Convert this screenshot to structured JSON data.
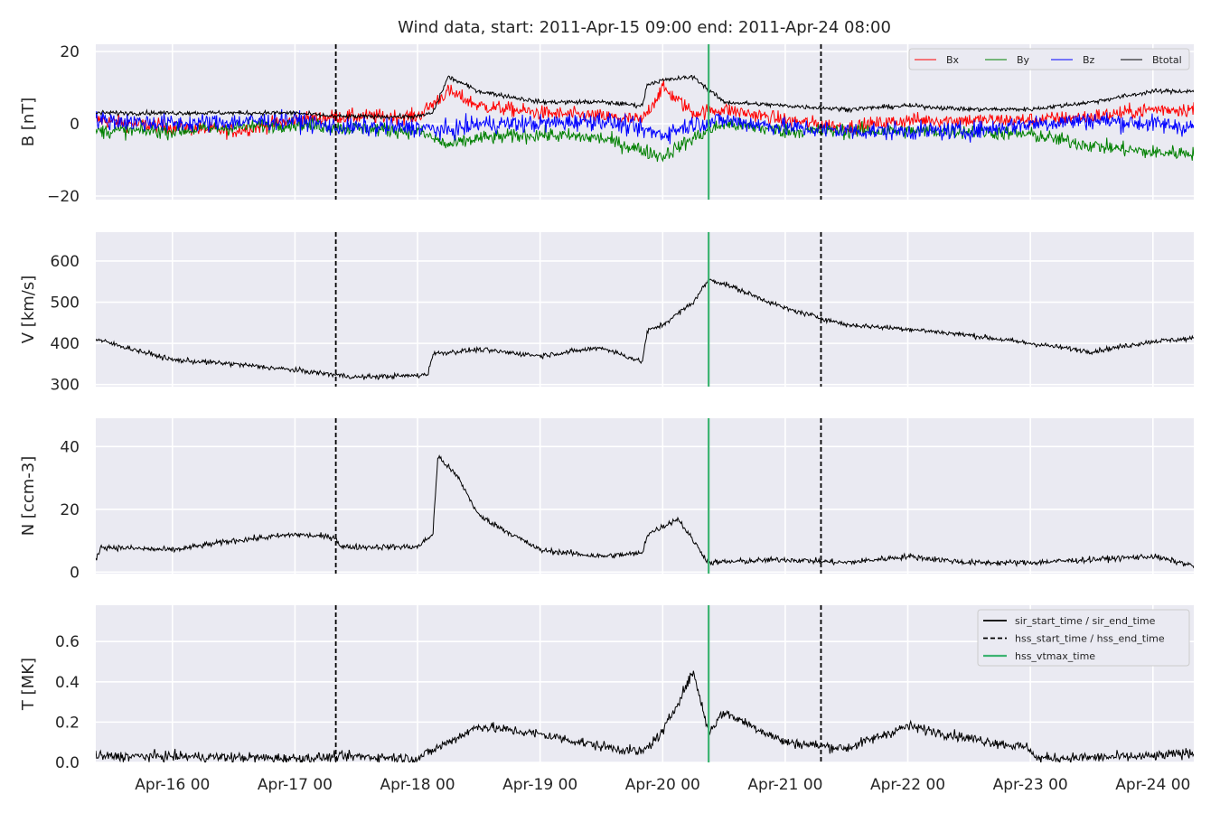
{
  "title": "Wind data, start: 2011-Apr-15 09:00  end: 2011-Apr-24 08:00",
  "x_tick_labels": [
    "Apr-16 00",
    "Apr-17 00",
    "Apr-18 00",
    "Apr-19 00",
    "Apr-20 00",
    "Apr-21 00",
    "Apr-22 00",
    "Apr-23 00",
    "Apr-24 00"
  ],
  "chart_data": {
    "type": "line",
    "x_range": [
      "2011-04-15 09:00",
      "2011-04-24 08:00"
    ],
    "x_ticks": [
      "2011-04-16 00:00",
      "2011-04-17 00:00",
      "2011-04-18 00:00",
      "2011-04-19 00:00",
      "2011-04-20 00:00",
      "2011-04-21 00:00",
      "2011-04-22 00:00",
      "2011-04-23 00:00",
      "2011-04-24 00:00"
    ],
    "events": {
      "hss_start_time": "2011-04-17 08:00",
      "hss_end_time": "2011-04-21 07:00",
      "hss_vtmax_time": "2011-04-20 09:00"
    },
    "colors": {
      "Bx": "#ff0000",
      "By": "#008000",
      "Bz": "#0000ff",
      "Btotal": "#000000",
      "hss_line": "#000000",
      "vtmax_line": "#3cb371",
      "background": "#eaeaf2"
    },
    "panels": [
      {
        "ylabel": "B [nT]",
        "ylim": [
          -21,
          22
        ],
        "yticks": [
          -20,
          0,
          20
        ],
        "ytick_labels": [
          "−20",
          "0",
          "20"
        ],
        "legend": {
          "position": "top-right",
          "entries": [
            "Bx",
            "By",
            "Bz",
            "Btotal"
          ]
        },
        "series": [
          {
            "name": "Bx",
            "noise": 2.0,
            "points": [
              [
                "2011-04-15 09:00",
                1
              ],
              [
                "2011-04-16 00:00",
                -1
              ],
              [
                "2011-04-16 12:00",
                -2
              ],
              [
                "2011-04-17 00:00",
                1
              ],
              [
                "2011-04-17 08:00",
                2
              ],
              [
                "2011-04-18 00:00",
                2
              ],
              [
                "2011-04-18 06:00",
                9
              ],
              [
                "2011-04-18 12:00",
                5
              ],
              [
                "2011-04-19 00:00",
                3
              ],
              [
                "2011-04-19 12:00",
                2
              ],
              [
                "2011-04-19 20:00",
                1
              ],
              [
                "2011-04-20 00:00",
                10
              ],
              [
                "2011-04-20 06:00",
                3
              ],
              [
                "2011-04-20 12:00",
                4
              ],
              [
                "2011-04-21 00:00",
                1
              ],
              [
                "2011-04-21 12:00",
                -1
              ],
              [
                "2011-04-22 00:00",
                1
              ],
              [
                "2011-04-22 12:00",
                1
              ],
              [
                "2011-04-23 00:00",
                1
              ],
              [
                "2011-04-23 12:00",
                2
              ],
              [
                "2011-04-24 00:00",
                4
              ],
              [
                "2011-04-24 08:00",
                4
              ]
            ]
          },
          {
            "name": "By",
            "noise": 2.0,
            "points": [
              [
                "2011-04-15 09:00",
                -2
              ],
              [
                "2011-04-16 00:00",
                -2
              ],
              [
                "2011-04-17 00:00",
                0
              ],
              [
                "2011-04-17 08:00",
                -1
              ],
              [
                "2011-04-18 00:00",
                -2
              ],
              [
                "2011-04-18 06:00",
                -6
              ],
              [
                "2011-04-18 12:00",
                -4
              ],
              [
                "2011-04-19 00:00",
                -3
              ],
              [
                "2011-04-19 12:00",
                -4
              ],
              [
                "2011-04-20 00:00",
                -9
              ],
              [
                "2011-04-20 06:00",
                -4
              ],
              [
                "2011-04-20 12:00",
                0
              ],
              [
                "2011-04-21 00:00",
                -2
              ],
              [
                "2011-04-21 12:00",
                -2
              ],
              [
                "2011-04-22 00:00",
                -2
              ],
              [
                "2011-04-22 12:00",
                -2
              ],
              [
                "2011-04-23 00:00",
                -3
              ],
              [
                "2011-04-23 12:00",
                -6
              ],
              [
                "2011-04-24 00:00",
                -8
              ],
              [
                "2011-04-24 08:00",
                -8
              ]
            ]
          },
          {
            "name": "Bz",
            "noise": 2.5,
            "points": [
              [
                "2011-04-15 09:00",
                1
              ],
              [
                "2011-04-16 00:00",
                0
              ],
              [
                "2011-04-17 00:00",
                1
              ],
              [
                "2011-04-17 08:00",
                -1
              ],
              [
                "2011-04-18 00:00",
                -1
              ],
              [
                "2011-04-18 06:00",
                -2
              ],
              [
                "2011-04-18 12:00",
                0
              ],
              [
                "2011-04-19 00:00",
                0
              ],
              [
                "2011-04-19 12:00",
                1
              ],
              [
                "2011-04-20 00:00",
                -3
              ],
              [
                "2011-04-20 06:00",
                0
              ],
              [
                "2011-04-20 12:00",
                1
              ],
              [
                "2011-04-21 00:00",
                -1
              ],
              [
                "2011-04-21 12:00",
                -2
              ],
              [
                "2011-04-22 00:00",
                -2
              ],
              [
                "2011-04-22 12:00",
                -2
              ],
              [
                "2011-04-23 00:00",
                0
              ],
              [
                "2011-04-23 12:00",
                1
              ],
              [
                "2011-04-24 00:00",
                0
              ],
              [
                "2011-04-24 08:00",
                -1
              ]
            ]
          },
          {
            "name": "Btotal",
            "noise": 0.6,
            "points": [
              [
                "2011-04-15 09:00",
                3
              ],
              [
                "2011-04-16 00:00",
                3
              ],
              [
                "2011-04-17 00:00",
                3
              ],
              [
                "2011-04-17 08:00",
                2
              ],
              [
                "2011-04-18 00:00",
                2
              ],
              [
                "2011-04-18 03:00",
                3
              ],
              [
                "2011-04-18 06:00",
                13
              ],
              [
                "2011-04-18 12:00",
                9
              ],
              [
                "2011-04-19 00:00",
                6
              ],
              [
                "2011-04-19 12:00",
                6
              ],
              [
                "2011-04-19 20:00",
                5
              ],
              [
                "2011-04-19 21:00",
                11
              ],
              [
                "2011-04-20 00:00",
                12
              ],
              [
                "2011-04-20 06:00",
                13
              ],
              [
                "2011-04-20 12:00",
                6
              ],
              [
                "2011-04-21 00:00",
                5
              ],
              [
                "2011-04-21 12:00",
                4
              ],
              [
                "2011-04-22 00:00",
                5
              ],
              [
                "2011-04-22 12:00",
                4
              ],
              [
                "2011-04-23 00:00",
                4
              ],
              [
                "2011-04-23 12:00",
                6
              ],
              [
                "2011-04-24 00:00",
                9
              ],
              [
                "2011-04-24 08:00",
                9
              ]
            ]
          }
        ]
      },
      {
        "ylabel": "V [km/s]",
        "ylim": [
          295,
          670
        ],
        "yticks": [
          300,
          400,
          500,
          600
        ],
        "ytick_labels": [
          "300",
          "400",
          "500",
          "600"
        ],
        "series": [
          {
            "name": "V",
            "noise": 6,
            "points": [
              [
                "2011-04-15 09:00",
                410
              ],
              [
                "2011-04-15 18:00",
                380
              ],
              [
                "2011-04-16 00:00",
                360
              ],
              [
                "2011-04-16 12:00",
                350
              ],
              [
                "2011-04-17 00:00",
                335
              ],
              [
                "2011-04-17 12:00",
                318
              ],
              [
                "2011-04-18 00:00",
                322
              ],
              [
                "2011-04-18 02:00",
                325
              ],
              [
                "2011-04-18 03:00",
                375
              ],
              [
                "2011-04-18 12:00",
                385
              ],
              [
                "2011-04-19 00:00",
                370
              ],
              [
                "2011-04-19 12:00",
                390
              ],
              [
                "2011-04-19 20:00",
                355
              ],
              [
                "2011-04-19 21:00",
                430
              ],
              [
                "2011-04-20 00:00",
                445
              ],
              [
                "2011-04-20 06:00",
                500
              ],
              [
                "2011-04-20 09:00",
                555
              ],
              [
                "2011-04-20 12:00",
                545
              ],
              [
                "2011-04-21 00:00",
                485
              ],
              [
                "2011-04-21 12:00",
                445
              ],
              [
                "2011-04-22 00:00",
                435
              ],
              [
                "2011-04-22 12:00",
                420
              ],
              [
                "2011-04-23 00:00",
                400
              ],
              [
                "2011-04-23 12:00",
                380
              ],
              [
                "2011-04-24 00:00",
                405
              ],
              [
                "2011-04-24 08:00",
                412
              ]
            ]
          }
        ]
      },
      {
        "ylabel": "N [ccm-3]",
        "ylim": [
          -0.5,
          49
        ],
        "yticks": [
          0,
          20,
          40
        ],
        "ytick_labels": [
          "0",
          "20",
          "40"
        ],
        "series": [
          {
            "name": "N",
            "noise": 0.9,
            "points": [
              [
                "2011-04-15 09:00",
                4
              ],
              [
                "2011-04-15 10:00",
                8
              ],
              [
                "2011-04-16 00:00",
                7
              ],
              [
                "2011-04-16 12:00",
                10
              ],
              [
                "2011-04-17 00:00",
                12
              ],
              [
                "2011-04-17 08:00",
                11
              ],
              [
                "2011-04-17 09:00",
                8
              ],
              [
                "2011-04-18 00:00",
                8
              ],
              [
                "2011-04-18 03:00",
                12
              ],
              [
                "2011-04-18 04:00",
                37
              ],
              [
                "2011-04-18 08:00",
                30
              ],
              [
                "2011-04-18 12:00",
                18
              ],
              [
                "2011-04-19 00:00",
                7
              ],
              [
                "2011-04-19 12:00",
                5
              ],
              [
                "2011-04-19 20:00",
                6
              ],
              [
                "2011-04-19 21:00",
                12
              ],
              [
                "2011-04-20 03:00",
                17
              ],
              [
                "2011-04-20 09:00",
                3
              ],
              [
                "2011-04-21 00:00",
                4
              ],
              [
                "2011-04-21 12:00",
                3
              ],
              [
                "2011-04-22 00:00",
                5
              ],
              [
                "2011-04-22 12:00",
                3
              ],
              [
                "2011-04-23 00:00",
                3
              ],
              [
                "2011-04-23 12:00",
                4
              ],
              [
                "2011-04-24 00:00",
                5
              ],
              [
                "2011-04-24 08:00",
                2
              ]
            ]
          }
        ]
      },
      {
        "ylabel": "T [MK]",
        "ylim": [
          0,
          0.78
        ],
        "yticks": [
          0.0,
          0.2,
          0.4,
          0.6
        ],
        "ytick_labels": [
          "0.0",
          "0.2",
          "0.4",
          "0.6"
        ],
        "legend": {
          "position": "top-right",
          "entries": [
            "sir_start_time / sir_end_time",
            "hss_start_time / hss_end_time",
            "hss_vtmax_time"
          ]
        },
        "series": [
          {
            "name": "T",
            "noise": 0.025,
            "points": [
              [
                "2011-04-15 09:00",
                0.03
              ],
              [
                "2011-04-16 00:00",
                0.03
              ],
              [
                "2011-04-17 00:00",
                0.02
              ],
              [
                "2011-04-17 12:00",
                0.03
              ],
              [
                "2011-04-18 00:00",
                0.02
              ],
              [
                "2011-04-18 06:00",
                0.1
              ],
              [
                "2011-04-18 12:00",
                0.18
              ],
              [
                "2011-04-19 00:00",
                0.14
              ],
              [
                "2011-04-19 12:00",
                0.08
              ],
              [
                "2011-04-19 20:00",
                0.05
              ],
              [
                "2011-04-20 00:00",
                0.15
              ],
              [
                "2011-04-20 06:00",
                0.45
              ],
              [
                "2011-04-20 09:00",
                0.15
              ],
              [
                "2011-04-20 12:00",
                0.25
              ],
              [
                "2011-04-21 00:00",
                0.1
              ],
              [
                "2011-04-21 12:00",
                0.07
              ],
              [
                "2011-04-22 00:00",
                0.18
              ],
              [
                "2011-04-22 12:00",
                0.12
              ],
              [
                "2011-04-23 00:00",
                0.07
              ],
              [
                "2011-04-23 01:00",
                0.02
              ],
              [
                "2011-04-24 00:00",
                0.03
              ],
              [
                "2011-04-24 08:00",
                0.05
              ]
            ]
          }
        ]
      }
    ]
  }
}
